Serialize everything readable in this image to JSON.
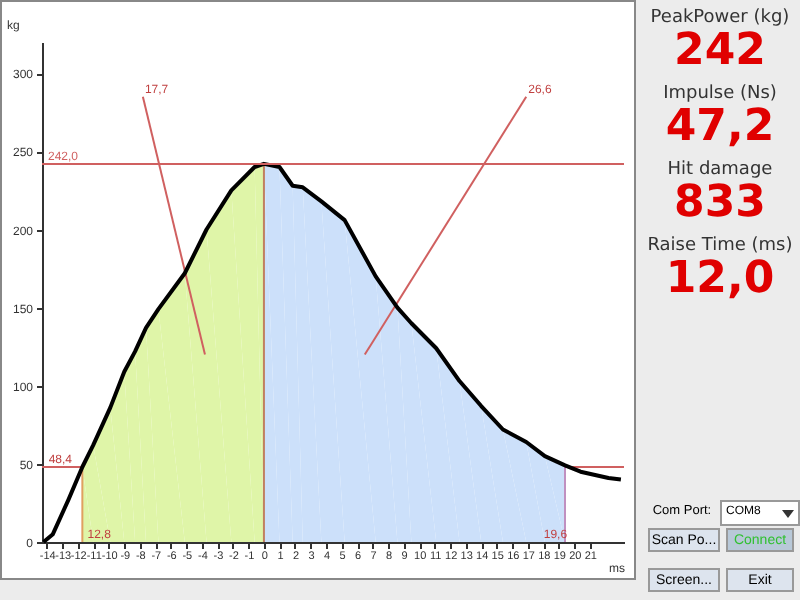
{
  "chart_data": [
    {
      "type": "line",
      "xlabel": "ms",
      "ylabel": "kg",
      "xlim": [
        -14.3,
        23.2
      ],
      "ylim": [
        0,
        320
      ],
      "xticks": [
        -14,
        -13,
        -12,
        -11,
        -10,
        -9,
        -8,
        -7,
        -6,
        -5,
        -4,
        -3,
        -2,
        -1,
        0,
        1,
        2,
        3,
        4,
        5,
        6,
        7,
        8,
        9,
        10,
        11,
        12,
        13,
        14,
        15,
        16,
        17,
        18,
        19,
        20,
        21
      ],
      "yticks": [
        0,
        50,
        100,
        150,
        200,
        250,
        300
      ],
      "series": [
        {
          "type": "area",
          "color": "#dff5a8",
          "x": [
            -11.7,
            -11,
            -9.9,
            -9,
            -8.3,
            -7.6,
            -6.8,
            -5.1,
            -3.7,
            -2.1,
            -0.6,
            0
          ],
          "values": [
            48,
            62,
            86,
            109,
            122,
            137,
            149,
            172,
            200,
            225,
            240,
            242
          ]
        },
        {
          "type": "area",
          "color": "#cce0fa",
          "x": [
            0,
            1,
            1.85,
            2.5,
            3.7,
            5.2,
            7.2,
            8.6,
            9.5,
            11.1,
            12.6,
            14,
            15.4,
            16.9,
            18.1,
            19.4
          ],
          "values": [
            242,
            240,
            228,
            227,
            218,
            206,
            170,
            150,
            140,
            124,
            103,
            87,
            72,
            64,
            55,
            49
          ]
        },
        {
          "type": "line",
          "color": "#e0a060",
          "x": [
            -11.7,
            -11.7
          ],
          "values": [
            0,
            48
          ]
        },
        {
          "type": "line",
          "color": "#d06060",
          "x": [
            -14.3,
            -11.7
          ],
          "values": [
            48,
            48
          ]
        },
        {
          "type": "line",
          "color": "#c08060",
          "x": [
            0,
            0
          ],
          "values": [
            0,
            242
          ]
        },
        {
          "type": "line",
          "color": "#c090c0",
          "x": [
            19.4,
            19.4
          ],
          "values": [
            0,
            48
          ]
        },
        {
          "type": "line",
          "color": "#d06060",
          "x": [
            19.4,
            23.2
          ],
          "values": [
            48,
            48
          ]
        },
        {
          "type": "line",
          "color": "#d06060",
          "x": [
            -7.8,
            -3.8
          ],
          "values": [
            285,
            120
          ]
        },
        {
          "type": "line",
          "color": "#d06060",
          "x": [
            16.9,
            6.5
          ],
          "values": [
            285,
            120
          ]
        },
        {
          "type": "line",
          "color": "#000000",
          "x": [
            -14.2,
            -13.6,
            -12.6,
            -11.7,
            -11,
            -9.9,
            -9,
            -8.3,
            -7.6,
            -6.8,
            -5.1,
            -3.7,
            -2.1,
            -0.6,
            0,
            1,
            1.85,
            2.5,
            3.7,
            5.2,
            7.2,
            8.6,
            9.5,
            11.1,
            12.6,
            14,
            15.4,
            16.9,
            18.1,
            19.4,
            20.4,
            22.2,
            23
          ],
          "values": [
            0,
            5,
            27,
            48,
            62,
            86,
            109,
            122,
            137,
            149,
            172,
            200,
            225,
            240,
            242,
            240,
            228,
            227,
            218,
            206,
            170,
            150,
            140,
            124,
            103,
            87,
            72,
            64,
            55,
            49,
            45,
            41,
            40
          ]
        }
      ],
      "ref_lines": [
        {
          "axis": "y",
          "value": 242,
          "label": "242,0",
          "color": "#d06060"
        }
      ],
      "annotations": [
        {
          "text": "48,4",
          "x": -14,
          "y": 48
        },
        {
          "text": "12,8",
          "x": -11.5,
          "y": 0
        },
        {
          "text": "19,6",
          "x": 17.9,
          "y": 0
        },
        {
          "text": "17,7",
          "x": -7.8,
          "y": 285
        },
        {
          "text": "26,6",
          "x": 16.9,
          "y": 285
        }
      ]
    },
    {
      "type": "other",
      "annotations": [
        "PeakPower (kg)",
        "242",
        "Impulse (Ns)",
        "47,2",
        "Hit damage",
        "833",
        "Raise Time (ms)",
        "12,0",
        "Com Port:",
        "COM8",
        "Scan Po...",
        "Connect",
        "Screen...",
        "Exit"
      ]
    }
  ]
}
